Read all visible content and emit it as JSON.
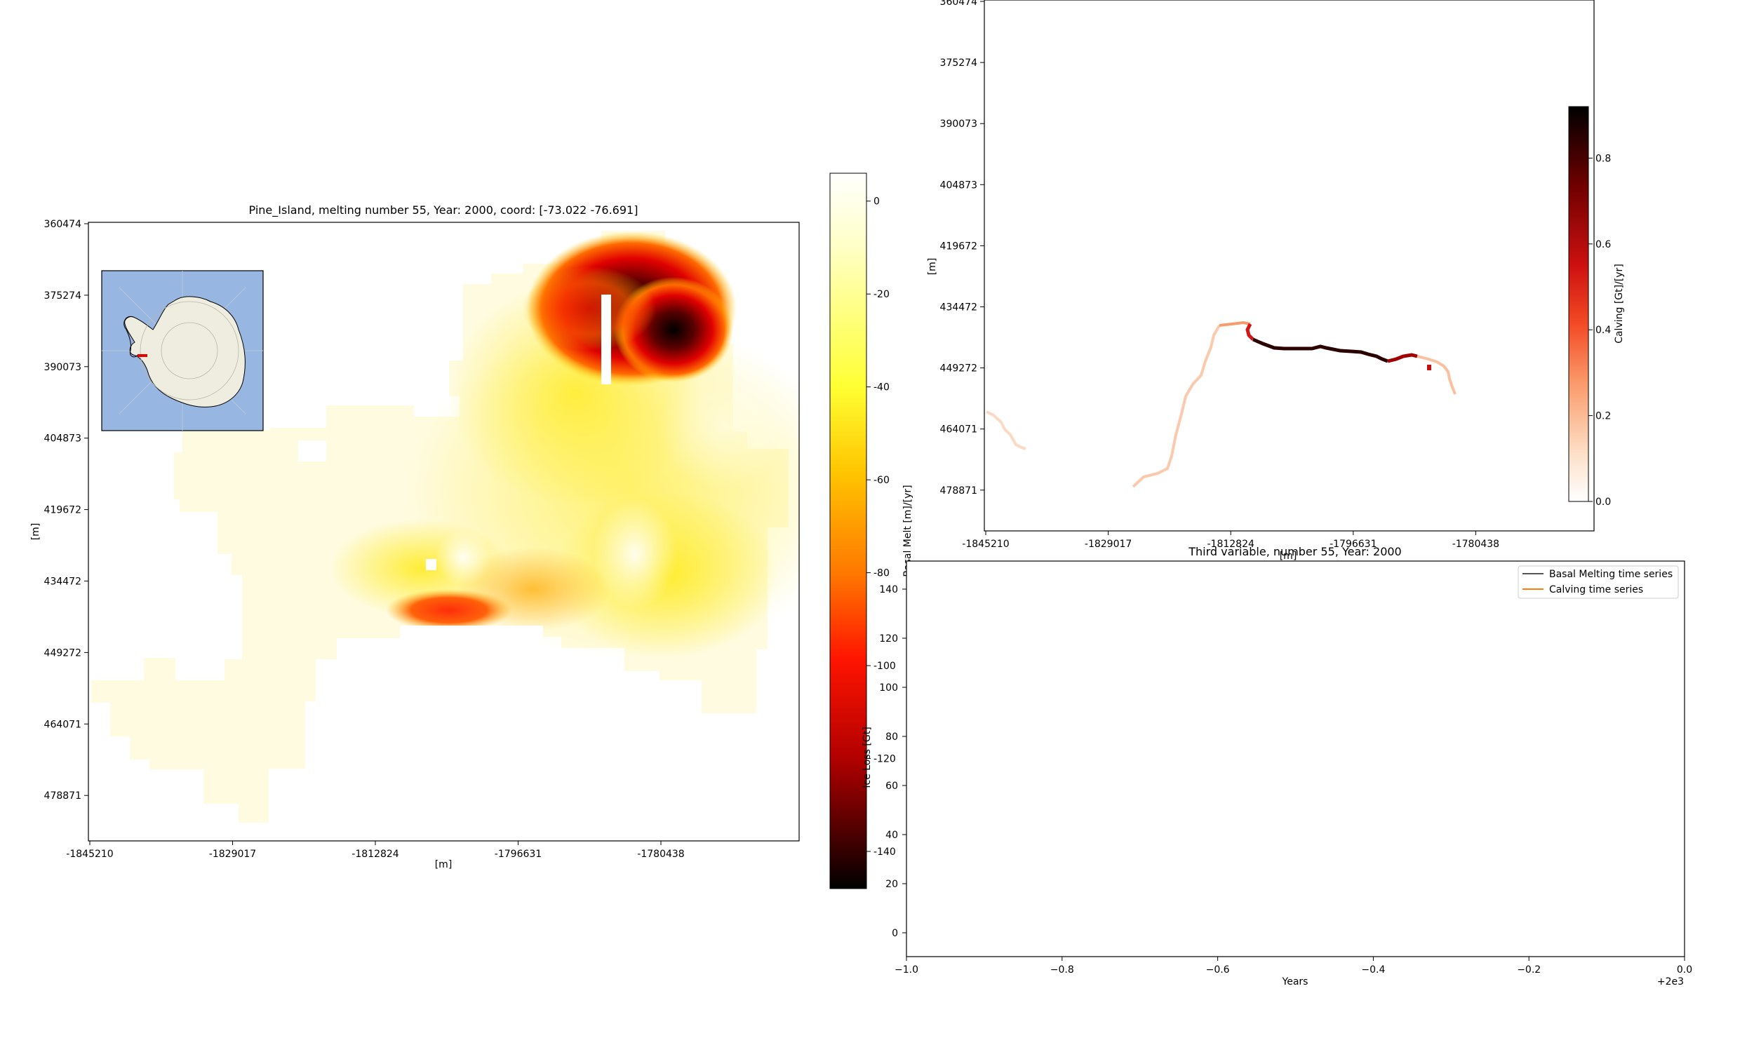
{
  "chart_data": [
    {
      "type": "heatmap",
      "title": "Pine_Island, melting number 55, Year: 2000, coord: [-73.022 -76.691]",
      "xlabel": "[m]",
      "ylabel": "[m]",
      "x_ticks": [
        "-1845210",
        "-1829017",
        "-1812824",
        "-1796631",
        "-1780438"
      ],
      "y_ticks": [
        "360474",
        "375274",
        "390073",
        "404873",
        "419672",
        "434472",
        "449272",
        "464071",
        "478871"
      ],
      "colorbar": {
        "label": "Basal Melt [m]/[yr]",
        "ticks": [
          "0",
          "-20",
          "-40",
          "-60",
          "-80",
          "-100",
          "-120",
          "-140"
        ],
        "range": [
          -148,
          6
        ],
        "colormap": "afmhot"
      },
      "inset": {
        "name": "Antarctica locator map",
        "ocean_color": "#97b6e1",
        "land_color": "#efeddf",
        "marker_color": "#e60000"
      },
      "grid": false
    },
    {
      "type": "heatmap",
      "xlabel": "[m]",
      "ylabel": "[m]",
      "x_ticks": [
        "-1845210",
        "-1829017",
        "-1812824",
        "-1796631",
        "-1780438"
      ],
      "y_ticks": [
        "360474",
        "375274",
        "390073",
        "404873",
        "419672",
        "434472",
        "449272",
        "464071",
        "478871"
      ],
      "colorbar": {
        "label": "Calving [Gt]/[yr]",
        "ticks": [
          "0.0",
          "0.2",
          "0.4",
          "0.6",
          "0.8"
        ],
        "range": [
          0,
          0.92
        ],
        "colormap": "gist_heat_r"
      },
      "grid": false
    },
    {
      "type": "line",
      "title": "Third variable, number 55, Year: 2000",
      "xlabel": "Years",
      "ylabel": "Ice Loss [Gt]",
      "x_ticks": [
        "−1.0",
        "−0.8",
        "−0.6",
        "−0.4",
        "−0.2",
        "0.0"
      ],
      "x_offset_label": "+2e3",
      "xlim": [
        -1.0,
        0.0
      ],
      "y_ticks": [
        "0",
        "20",
        "40",
        "60",
        "80",
        "100",
        "120",
        "140"
      ],
      "series": [
        {
          "name": "Basal Melting time series",
          "color": "#555555",
          "values": []
        },
        {
          "name": "Calving time series",
          "color": "#ff7f0e",
          "values": []
        }
      ],
      "legend": "top-right"
    }
  ]
}
